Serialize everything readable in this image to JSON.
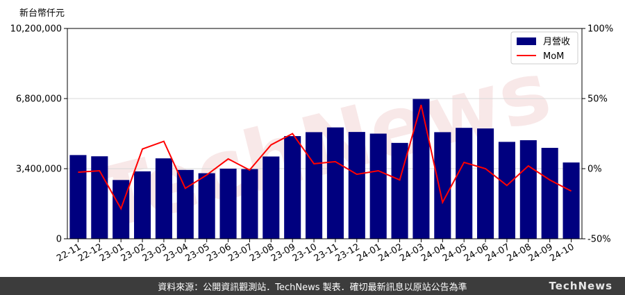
{
  "unit_label": "新台幣仟元",
  "footer_text": "資料來源：公開資訊觀測站．TechNews 製表．確切最新訊息以原站公告為準",
  "brand": "TechNews",
  "colors": {
    "bar": "#00007f",
    "line": "#ff0000",
    "footer_bg": "#3c3c3c"
  },
  "chart_data": {
    "type": "bar",
    "categories": [
      "22-11",
      "22-12",
      "23-01",
      "23-02",
      "23-03",
      "23-04",
      "23-05",
      "23-06",
      "23-07",
      "23-08",
      "23-09",
      "23-10",
      "23-11",
      "23-12",
      "24-01",
      "24-02",
      "24-03",
      "24-04",
      "24-05",
      "24-06",
      "24-07",
      "24-08",
      "24-09",
      "24-10"
    ],
    "series": [
      {
        "name": "月營收",
        "type": "bar",
        "axis": "left",
        "values": [
          4060000,
          4000000,
          2850000,
          3270000,
          3900000,
          3340000,
          3180000,
          3400000,
          3380000,
          3990000,
          4980000,
          5170000,
          5400000,
          5180000,
          5100000,
          4650000,
          6780000,
          5170000,
          5380000,
          5350000,
          4700000,
          4780000,
          4410000,
          3700000
        ]
      },
      {
        "name": "MoM",
        "type": "line",
        "axis": "right",
        "values": [
          -2.5,
          -1.5,
          -28.5,
          14.0,
          19.5,
          -14.0,
          -4.5,
          7.0,
          -1.0,
          17.0,
          25.0,
          3.5,
          5.0,
          -4.0,
          -1.5,
          -8.0,
          45.5,
          -24.0,
          4.5,
          0.0,
          -12.0,
          2.0,
          -8.0,
          -16.0
        ]
      }
    ],
    "left_axis": {
      "ticks": [
        "0",
        "3,400,000",
        "6,800,000",
        "10,200,000"
      ],
      "tick_values": [
        0,
        3400000,
        6800000,
        10200000
      ],
      "ylim": [
        0,
        10200000
      ]
    },
    "right_axis": {
      "ticks": [
        "-50%",
        "0%",
        "50%",
        "100%"
      ],
      "tick_values": [
        -50,
        0,
        50,
        100
      ],
      "ylim": [
        -50,
        100
      ]
    },
    "grid": "horizontal",
    "legend_position": "top-right"
  }
}
